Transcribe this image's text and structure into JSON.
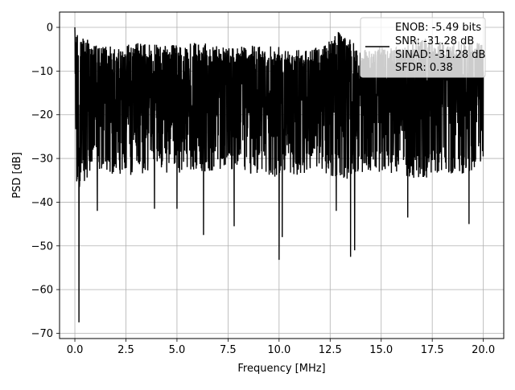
{
  "chart_data": {
    "type": "line",
    "title": "",
    "xlabel": "Frequency [MHz]",
    "ylabel": "PSD [dB]",
    "xlim": [
      -0.75,
      21.0
    ],
    "ylim": [
      -71.2,
      3.5
    ],
    "x_ticks": [
      0.0,
      2.5,
      5.0,
      7.5,
      10.0,
      12.5,
      15.0,
      17.5,
      20.0
    ],
    "x_tick_labels": [
      "0.0",
      "2.5",
      "5.0",
      "7.5",
      "10.0",
      "12.5",
      "15.0",
      "17.5",
      "20.0"
    ],
    "y_ticks": [
      0,
      -10,
      -20,
      -30,
      -40,
      -50,
      -60,
      -70
    ],
    "y_tick_labels": [
      "0",
      "−10",
      "−20",
      "−30",
      "−40",
      "−50",
      "−60",
      "−70"
    ],
    "grid": true,
    "legend": {
      "placement": "top-right",
      "entries": [
        "ENOB: -5.49 bits",
        "SNR: -31.28 dB",
        "SINAD: -31.28 dB",
        "SFDR: 0.38"
      ]
    },
    "series": [
      {
        "color": "#000000",
        "x_range": [
          0.0,
          20.0
        ],
        "envelope": {
          "x": [
            0.0,
            1.0,
            2.0,
            3.0,
            4.0,
            5.0,
            6.0,
            7.0,
            8.0,
            9.0,
            10.0,
            11.0,
            12.0,
            13.0,
            14.0,
            15.0,
            16.0,
            17.0,
            18.0,
            19.0,
            20.0
          ],
          "y_max": [
            0.0,
            -4.0,
            -4.5,
            -3.5,
            -4.0,
            -4.0,
            -3.5,
            -4.0,
            -4.5,
            -4.0,
            -4.0,
            -5.0,
            -4.5,
            -0.5,
            -5.0,
            -4.5,
            -4.5,
            -2.0,
            -3.5,
            -3.0,
            -3.0
          ],
          "y_min": [
            -38.0,
            -32.0,
            -34.0,
            -35.0,
            -33.0,
            -34.0,
            -33.0,
            -33.0,
            -33.0,
            -34.0,
            -35.0,
            -34.0,
            -33.0,
            -35.0,
            -34.0,
            -33.0,
            -34.0,
            -35.0,
            -33.0,
            -34.0,
            -31.0
          ]
        },
        "dips": [
          {
            "x": 0.2,
            "y": -67.5
          },
          {
            "x": 1.1,
            "y": -42.0
          },
          {
            "x": 3.9,
            "y": -41.5
          },
          {
            "x": 5.0,
            "y": -41.5
          },
          {
            "x": 6.3,
            "y": -47.5
          },
          {
            "x": 7.8,
            "y": -45.5
          },
          {
            "x": 10.0,
            "y": -53.2
          },
          {
            "x": 10.15,
            "y": -48.0
          },
          {
            "x": 12.8,
            "y": -42.0
          },
          {
            "x": 13.5,
            "y": -52.5
          },
          {
            "x": 13.7,
            "y": -51.0
          },
          {
            "x": 16.3,
            "y": -43.5
          },
          {
            "x": 19.3,
            "y": -45.0
          }
        ]
      }
    ]
  }
}
